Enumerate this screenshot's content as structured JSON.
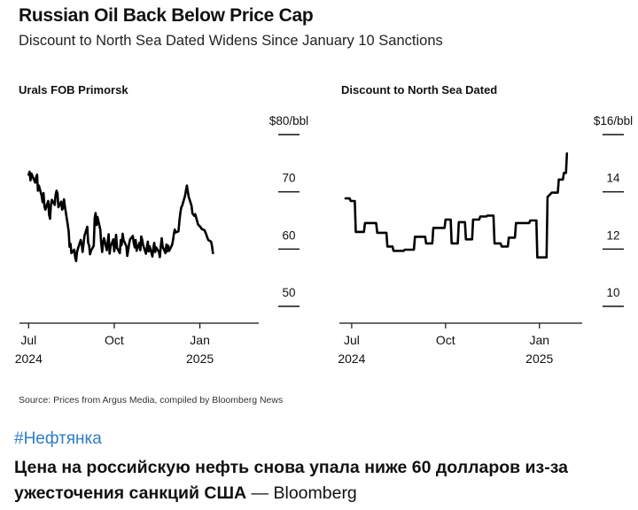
{
  "header": {
    "title": "Russian Oil Back Below Price Cap",
    "subtitle": "Discount to North Sea Dated Widens Since January 10 Sanctions"
  },
  "chart_data": [
    {
      "type": "line",
      "title": "Urals FOB Primorsk",
      "y_unit_label": "$80/bbl",
      "ylim": [
        50,
        80
      ],
      "yticks": [
        {
          "value": 80,
          "label": "$80/bbl"
        },
        {
          "value": 70,
          "label": "70"
        },
        {
          "value": 60,
          "label": "60"
        },
        {
          "value": 50,
          "label": "50"
        }
      ],
      "xlim": [
        "2024-06-25",
        "2025-02-18"
      ],
      "xticks": [
        {
          "date": "2024-07-01",
          "label": "Jul",
          "sublabel": "2024"
        },
        {
          "date": "2024-10-01",
          "label": "Oct",
          "sublabel": ""
        },
        {
          "date": "2025-01-01",
          "label": "Jan",
          "sublabel": "2025"
        }
      ],
      "grid": false,
      "series": [
        {
          "color": "#000000",
          "points": [
            [
              "2024-07-01",
              73.0
            ],
            [
              "2024-07-02",
              73.5
            ],
            [
              "2024-07-03",
              72.0
            ],
            [
              "2024-07-04",
              73.2
            ],
            [
              "2024-07-05",
              72.8
            ],
            [
              "2024-07-08",
              71.6
            ],
            [
              "2024-07-09",
              72.5
            ],
            [
              "2024-07-10",
              73.0
            ],
            [
              "2024-07-11",
              70.2
            ],
            [
              "2024-07-12",
              71.1
            ],
            [
              "2024-07-15",
              69.3
            ],
            [
              "2024-07-16",
              68.2
            ],
            [
              "2024-07-17",
              69.8
            ],
            [
              "2024-07-18",
              67.4
            ],
            [
              "2024-07-19",
              66.9
            ],
            [
              "2024-07-22",
              68.4
            ],
            [
              "2024-07-23",
              66.0
            ],
            [
              "2024-07-24",
              65.3
            ],
            [
              "2024-07-25",
              67.8
            ],
            [
              "2024-07-26",
              68.6
            ],
            [
              "2024-07-29",
              67.7
            ],
            [
              "2024-07-30",
              69.5
            ],
            [
              "2024-07-31",
              70.2
            ],
            [
              "2024-08-01",
              69.7
            ],
            [
              "2024-08-02",
              67.3
            ],
            [
              "2024-08-05",
              68.3
            ],
            [
              "2024-08-06",
              66.9
            ],
            [
              "2024-08-07",
              67.2
            ],
            [
              "2024-08-08",
              68.7
            ],
            [
              "2024-08-09",
              67.4
            ],
            [
              "2024-08-12",
              64.3
            ],
            [
              "2024-08-13",
              63.1
            ],
            [
              "2024-08-14",
              60.4
            ],
            [
              "2024-08-15",
              60.9
            ],
            [
              "2024-08-16",
              59.3
            ],
            [
              "2024-08-19",
              59.9
            ],
            [
              "2024-08-20",
              58.6
            ],
            [
              "2024-08-21",
              57.9
            ],
            [
              "2024-08-22",
              59.5
            ],
            [
              "2024-08-23",
              60.1
            ],
            [
              "2024-08-26",
              61.6
            ],
            [
              "2024-08-27",
              60.9
            ],
            [
              "2024-08-28",
              59.5
            ],
            [
              "2024-08-29",
              60.9
            ],
            [
              "2024-08-30",
              62.3
            ],
            [
              "2024-09-02",
              63.9
            ],
            [
              "2024-09-03",
              61.1
            ],
            [
              "2024-09-04",
              60.6
            ],
            [
              "2024-09-05",
              59.1
            ],
            [
              "2024-09-06",
              59.7
            ],
            [
              "2024-09-09",
              60.6
            ],
            [
              "2024-09-10",
              65.5
            ],
            [
              "2024-09-11",
              66.3
            ],
            [
              "2024-09-12",
              64.2
            ],
            [
              "2024-09-13",
              65.6
            ],
            [
              "2024-09-16",
              63.4
            ],
            [
              "2024-09-17",
              61.1
            ],
            [
              "2024-09-18",
              59.5
            ],
            [
              "2024-09-19",
              61.2
            ],
            [
              "2024-09-20",
              61.9
            ],
            [
              "2024-09-23",
              59.8
            ],
            [
              "2024-09-24",
              61.3
            ],
            [
              "2024-09-25",
              62.6
            ],
            [
              "2024-09-26",
              59.2
            ],
            [
              "2024-09-27",
              60.4
            ],
            [
              "2024-09-30",
              61.7
            ],
            [
              "2024-10-01",
              59.6
            ],
            [
              "2024-10-02",
              60.8
            ],
            [
              "2024-10-03",
              62.5
            ],
            [
              "2024-10-04",
              60.2
            ],
            [
              "2024-10-07",
              59.3
            ],
            [
              "2024-10-08",
              61.6
            ],
            [
              "2024-10-09",
              60.7
            ],
            [
              "2024-10-10",
              62.7
            ],
            [
              "2024-10-11",
              61.6
            ],
            [
              "2024-10-14",
              60.5
            ],
            [
              "2024-10-15",
              58.8
            ],
            [
              "2024-10-16",
              59.8
            ],
            [
              "2024-10-17",
              60.9
            ],
            [
              "2024-10-18",
              61.7
            ],
            [
              "2024-10-21",
              62.3
            ],
            [
              "2024-10-22",
              61.0
            ],
            [
              "2024-10-23",
              60.3
            ],
            [
              "2024-10-24",
              61.6
            ],
            [
              "2024-10-25",
              59.7
            ],
            [
              "2024-10-28",
              61.1
            ],
            [
              "2024-10-29",
              59.8
            ],
            [
              "2024-10-30",
              62.2
            ],
            [
              "2024-10-31",
              61.6
            ],
            [
              "2024-11-01",
              60.7
            ],
            [
              "2024-11-04",
              59.2
            ],
            [
              "2024-11-05",
              60.2
            ],
            [
              "2024-11-06",
              61.3
            ],
            [
              "2024-11-07",
              59.6
            ],
            [
              "2024-11-08",
              60.5
            ],
            [
              "2024-11-11",
              58.7
            ],
            [
              "2024-11-12",
              60.2
            ],
            [
              "2024-11-13",
              61.1
            ],
            [
              "2024-11-14",
              59.5
            ],
            [
              "2024-11-15",
              60.3
            ],
            [
              "2024-11-18",
              59.5
            ],
            [
              "2024-11-19",
              58.6
            ],
            [
              "2024-11-20",
              60.6
            ],
            [
              "2024-11-21",
              61.9
            ],
            [
              "2024-11-22",
              60.4
            ],
            [
              "2024-11-25",
              59.3
            ],
            [
              "2024-11-26",
              60.8
            ],
            [
              "2024-11-27",
              59.6
            ],
            [
              "2024-11-28",
              60.6
            ],
            [
              "2024-11-29",
              59.7
            ],
            [
              "2024-12-02",
              60.7
            ],
            [
              "2024-12-03",
              61.4
            ],
            [
              "2024-12-04",
              62.6
            ],
            [
              "2024-12-05",
              63.4
            ],
            [
              "2024-12-06",
              62.9
            ],
            [
              "2024-12-09",
              63.1
            ],
            [
              "2024-12-10",
              64.9
            ],
            [
              "2024-12-11",
              66.3
            ],
            [
              "2024-12-12",
              67.3
            ],
            [
              "2024-12-13",
              67.6
            ],
            [
              "2024-12-16",
              69.3
            ],
            [
              "2024-12-17",
              70.2
            ],
            [
              "2024-12-18",
              71.1
            ],
            [
              "2024-12-19",
              70.1
            ],
            [
              "2024-12-20",
              69.1
            ],
            [
              "2024-12-23",
              67.6
            ],
            [
              "2024-12-24",
              66.2
            ],
            [
              "2024-12-26",
              65.8
            ],
            [
              "2024-12-27",
              66.1
            ],
            [
              "2024-12-30",
              64.3
            ],
            [
              "2025-01-02",
              63.8
            ],
            [
              "2025-01-03",
              63.5
            ],
            [
              "2025-01-06",
              63.3
            ],
            [
              "2025-01-07",
              62.9
            ],
            [
              "2025-01-08",
              62.5
            ],
            [
              "2025-01-09",
              62.0
            ],
            [
              "2025-01-10",
              61.6
            ],
            [
              "2025-01-13",
              61.3
            ],
            [
              "2025-01-14",
              60.6
            ],
            [
              "2025-01-15",
              59.3
            ]
          ]
        }
      ]
    },
    {
      "type": "line",
      "title": "Discount to North Sea Dated",
      "y_unit_label": "$16/bbl",
      "ylim": [
        10,
        16
      ],
      "yticks": [
        {
          "value": 16,
          "label": "$16/bbl"
        },
        {
          "value": 14,
          "label": "14"
        },
        {
          "value": 12,
          "label": "12"
        },
        {
          "value": 10,
          "label": "10"
        }
      ],
      "xlim": [
        "2024-06-25",
        "2025-02-18"
      ],
      "xticks": [
        {
          "date": "2024-07-01",
          "label": "Jul",
          "sublabel": "2024"
        },
        {
          "date": "2024-10-01",
          "label": "Oct",
          "sublabel": ""
        },
        {
          "date": "2025-01-01",
          "label": "Jan",
          "sublabel": "2025"
        }
      ],
      "grid": false,
      "series": [
        {
          "color": "#000000",
          "points": [
            [
              "2024-06-25",
              13.77
            ],
            [
              "2024-06-29",
              13.77
            ],
            [
              "2024-06-30",
              13.68
            ],
            [
              "2024-07-04",
              13.68
            ],
            [
              "2024-07-05",
              12.6
            ],
            [
              "2024-07-13",
              12.6
            ],
            [
              "2024-07-14",
              12.91
            ],
            [
              "2024-07-25",
              12.91
            ],
            [
              "2024-07-26",
              12.57
            ],
            [
              "2024-08-04",
              12.57
            ],
            [
              "2024-08-05",
              12.09
            ],
            [
              "2024-08-10",
              12.09
            ],
            [
              "2024-08-11",
              11.94
            ],
            [
              "2024-08-21",
              11.94
            ],
            [
              "2024-08-22",
              11.98
            ],
            [
              "2024-08-31",
              11.98
            ],
            [
              "2024-09-01",
              12.43
            ],
            [
              "2024-09-11",
              12.43
            ],
            [
              "2024-09-12",
              12.2
            ],
            [
              "2024-09-18",
              12.2
            ],
            [
              "2024-09-19",
              12.74
            ],
            [
              "2024-09-30",
              12.74
            ],
            [
              "2024-10-01",
              13.03
            ],
            [
              "2024-10-06",
              13.03
            ],
            [
              "2024-10-07",
              12.2
            ],
            [
              "2024-10-13",
              12.2
            ],
            [
              "2024-10-14",
              12.94
            ],
            [
              "2024-10-20",
              12.94
            ],
            [
              "2024-10-21",
              12.34
            ],
            [
              "2024-10-27",
              12.34
            ],
            [
              "2024-10-28",
              13.03
            ],
            [
              "2024-11-03",
              13.03
            ],
            [
              "2024-11-04",
              13.14
            ],
            [
              "2024-11-10",
              13.14
            ],
            [
              "2024-11-11",
              13.17
            ],
            [
              "2024-11-17",
              13.17
            ],
            [
              "2024-11-18",
              12.2
            ],
            [
              "2024-11-24",
              12.2
            ],
            [
              "2024-11-25",
              12.09
            ],
            [
              "2024-12-01",
              12.09
            ],
            [
              "2024-12-02",
              12.4
            ],
            [
              "2024-12-08",
              12.4
            ],
            [
              "2024-12-09",
              12.91
            ],
            [
              "2024-12-15",
              12.91
            ],
            [
              "2024-12-16",
              12.91
            ],
            [
              "2024-12-22",
              12.91
            ],
            [
              "2024-12-23",
              13.0
            ],
            [
              "2024-12-29",
              13.0
            ],
            [
              "2024-12-30",
              11.71
            ],
            [
              "2025-01-05",
              11.71
            ],
            [
              "2025-01-06",
              11.71
            ],
            [
              "2025-01-08",
              11.71
            ],
            [
              "2025-01-09",
              13.82
            ],
            [
              "2025-01-13",
              13.97
            ],
            [
              "2025-01-14",
              13.97
            ],
            [
              "2025-01-19",
              13.97
            ],
            [
              "2025-01-20",
              14.43
            ],
            [
              "2025-01-24",
              14.43
            ],
            [
              "2025-01-25",
              14.66
            ],
            [
              "2025-01-27",
              14.66
            ],
            [
              "2025-01-28",
              15.34
            ]
          ]
        }
      ]
    }
  ],
  "footer": {
    "source": "Source: Prices from Argus Media, compiled by Bloomberg News",
    "hashtag": "#Нефтянка",
    "caption_main": "Цена на российскую нефть снова упала ниже 60 долларов из-за ужесточения санкций США",
    "caption_source": " — Bloomberg"
  }
}
